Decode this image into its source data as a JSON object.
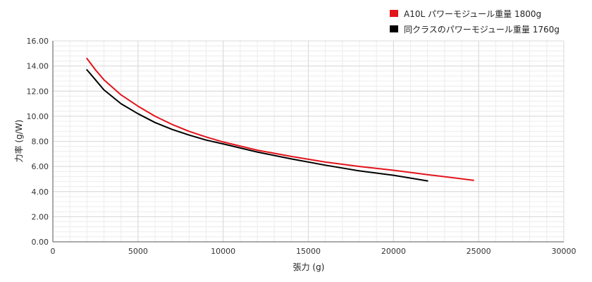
{
  "chart_data": {
    "type": "line",
    "title": "",
    "xlabel": "張力 (g)",
    "ylabel": "力率 (g/W)",
    "xlim": [
      0,
      30000
    ],
    "ylim": [
      0,
      16
    ],
    "x_ticks": [
      0,
      5000,
      10000,
      15000,
      20000,
      25000,
      30000
    ],
    "x_tick_labels": [
      "0",
      "5000",
      "10000",
      "15000",
      "20000",
      "25000",
      "30000"
    ],
    "y_ticks": [
      0,
      2,
      4,
      6,
      8,
      10,
      12,
      14,
      16
    ],
    "y_tick_labels": [
      "0.00",
      "2.00",
      "4.00",
      "6.00",
      "8.00",
      "10.00",
      "12.00",
      "14.00",
      "16.00"
    ],
    "grid": true,
    "legend_position": "top-right",
    "series": [
      {
        "name": "A10L パワーモジュール重量 1800g",
        "color": "#e3141b",
        "x": [
          2000,
          2500,
          3000,
          4000,
          5000,
          6000,
          7000,
          8000,
          9000,
          10000,
          12000,
          14000,
          16000,
          18000,
          20000,
          22000,
          24700
        ],
        "y": [
          14.6,
          13.7,
          12.9,
          11.7,
          10.8,
          10.0,
          9.35,
          8.8,
          8.35,
          7.95,
          7.3,
          6.8,
          6.35,
          6.0,
          5.7,
          5.35,
          4.9
        ]
      },
      {
        "name": "同クラスのパワーモジュール重量 1760g",
        "color": "#000000",
        "x": [
          2000,
          2500,
          3000,
          4000,
          5000,
          6000,
          7000,
          8000,
          9000,
          10000,
          12000,
          14000,
          16000,
          18000,
          20000,
          22000
        ],
        "y": [
          13.7,
          12.9,
          12.1,
          11.0,
          10.2,
          9.5,
          8.95,
          8.5,
          8.1,
          7.8,
          7.15,
          6.6,
          6.1,
          5.65,
          5.3,
          4.85
        ]
      }
    ]
  }
}
